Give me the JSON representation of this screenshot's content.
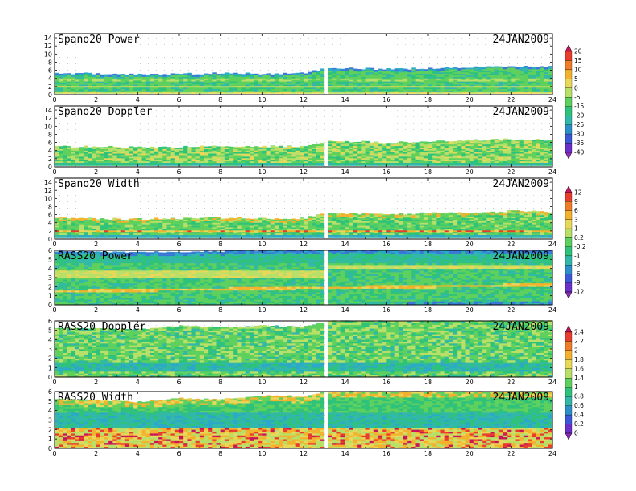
{
  "chart_data": [
    {
      "type": "heatmap",
      "title": "Spano20  Power",
      "date": "24JAN2009",
      "x_ticks": [
        0,
        2,
        4,
        6,
        8,
        10,
        12,
        14,
        16,
        18,
        20,
        22,
        24
      ],
      "xlim": [
        0,
        24
      ],
      "y_ticks": [
        0,
        2,
        4,
        6,
        8,
        10,
        12,
        14
      ],
      "ylim": [
        0,
        15
      ],
      "top_profile": [
        {
          "x": 0,
          "y": 5.3
        },
        {
          "x": 2,
          "y": 5.2
        },
        {
          "x": 4,
          "y": 5.0
        },
        {
          "x": 6,
          "y": 5.1
        },
        {
          "x": 8,
          "y": 5.3
        },
        {
          "x": 10,
          "y": 5.2
        },
        {
          "x": 12,
          "y": 5.3
        },
        {
          "x": 13.2,
          "y": 6.6
        },
        {
          "x": 16,
          "y": 6.3
        },
        {
          "x": 18,
          "y": 6.5
        },
        {
          "x": 20,
          "y": 6.7
        },
        {
          "x": 22,
          "y": 6.9
        },
        {
          "x": 24,
          "y": 6.8
        }
      ],
      "colorbar": "power"
    },
    {
      "type": "heatmap",
      "title": "Spano20  Doppler",
      "date": "24JAN2009",
      "x_ticks": [
        0,
        2,
        4,
        6,
        8,
        10,
        12,
        14,
        16,
        18,
        20,
        22,
        24
      ],
      "xlim": [
        0,
        24
      ],
      "y_ticks": [
        0,
        2,
        4,
        6,
        8,
        10,
        12,
        14
      ],
      "ylim": [
        0,
        15
      ],
      "top_profile": [
        {
          "x": 0,
          "y": 5.0
        },
        {
          "x": 2,
          "y": 5.0
        },
        {
          "x": 4,
          "y": 4.8
        },
        {
          "x": 6,
          "y": 4.9
        },
        {
          "x": 8,
          "y": 5.0
        },
        {
          "x": 10,
          "y": 5.0
        },
        {
          "x": 12,
          "y": 5.0
        },
        {
          "x": 13.2,
          "y": 6.4
        },
        {
          "x": 16,
          "y": 6.0
        },
        {
          "x": 18,
          "y": 6.2
        },
        {
          "x": 20,
          "y": 6.5
        },
        {
          "x": 22,
          "y": 6.8
        },
        {
          "x": 24,
          "y": 6.6
        }
      ]
    },
    {
      "type": "heatmap",
      "title": "Spano20  Width",
      "date": "24JAN2009",
      "x_ticks": [
        0,
        2,
        4,
        6,
        8,
        10,
        12,
        14,
        16,
        18,
        20,
        22,
        24
      ],
      "xlim": [
        0,
        24
      ],
      "y_ticks": [
        0,
        2,
        4,
        6,
        8,
        10,
        12,
        14
      ],
      "ylim": [
        0,
        15
      ],
      "top_profile": [
        {
          "x": 0,
          "y": 5.2
        },
        {
          "x": 2,
          "y": 5.0
        },
        {
          "x": 4,
          "y": 4.9
        },
        {
          "x": 6,
          "y": 5.1
        },
        {
          "x": 8,
          "y": 5.2
        },
        {
          "x": 10,
          "y": 5.1
        },
        {
          "x": 12,
          "y": 5.1
        },
        {
          "x": 13.2,
          "y": 6.5
        },
        {
          "x": 16,
          "y": 6.1
        },
        {
          "x": 18,
          "y": 6.4
        },
        {
          "x": 20,
          "y": 6.6
        },
        {
          "x": 22,
          "y": 6.9
        },
        {
          "x": 24,
          "y": 6.7
        }
      ],
      "colorbar": "width"
    },
    {
      "type": "heatmap",
      "title": "RASS20  Power",
      "date": "24JAN2009",
      "x_ticks": [
        0,
        2,
        4,
        6,
        8,
        10,
        12,
        14,
        16,
        18,
        20,
        22,
        24
      ],
      "xlim": [
        0,
        24
      ],
      "y_ticks": [
        0,
        1,
        2,
        3,
        4,
        5,
        6
      ],
      "ylim": [
        0,
        6
      ],
      "top_profile": [
        {
          "x": 0,
          "y": 5.9
        },
        {
          "x": 4,
          "y": 5.8
        },
        {
          "x": 8,
          "y": 5.9
        },
        {
          "x": 12,
          "y": 6.0
        },
        {
          "x": 16,
          "y": 6.0
        },
        {
          "x": 20,
          "y": 6.0
        },
        {
          "x": 24,
          "y": 6.0
        }
      ]
    },
    {
      "type": "heatmap",
      "title": "RASS20  Doppler",
      "date": "24JAN2009",
      "x_ticks": [
        0,
        2,
        4,
        6,
        8,
        10,
        12,
        14,
        16,
        18,
        20,
        22,
        24
      ],
      "xlim": [
        0,
        24
      ],
      "y_ticks": [
        0,
        1,
        2,
        3,
        4,
        5,
        6
      ],
      "ylim": [
        0,
        6
      ],
      "top_profile": [
        {
          "x": 0,
          "y": 5.3
        },
        {
          "x": 2,
          "y": 5.2
        },
        {
          "x": 4,
          "y": 5.1
        },
        {
          "x": 6,
          "y": 5.5
        },
        {
          "x": 8,
          "y": 5.3
        },
        {
          "x": 10,
          "y": 5.5
        },
        {
          "x": 12,
          "y": 5.4
        },
        {
          "x": 13.2,
          "y": 6.0
        },
        {
          "x": 16,
          "y": 6.0
        },
        {
          "x": 20,
          "y": 6.0
        },
        {
          "x": 24,
          "y": 6.0
        }
      ],
      "colorbar": "doppler"
    },
    {
      "type": "heatmap",
      "title": "RASS20  Width",
      "date": "24JAN2009",
      "x_ticks": [
        0,
        2,
        4,
        6,
        8,
        10,
        12,
        14,
        16,
        18,
        20,
        22,
        24
      ],
      "xlim": [
        0,
        24
      ],
      "y_ticks": [
        0,
        1,
        2,
        3,
        4,
        5,
        6
      ],
      "ylim": [
        0,
        6
      ],
      "top_profile": [
        {
          "x": 0,
          "y": 5.2
        },
        {
          "x": 2,
          "y": 5.1
        },
        {
          "x": 4,
          "y": 4.9
        },
        {
          "x": 6,
          "y": 5.3
        },
        {
          "x": 8,
          "y": 5.2
        },
        {
          "x": 10,
          "y": 5.6
        },
        {
          "x": 12,
          "y": 5.5
        },
        {
          "x": 13.2,
          "y": 6.0
        },
        {
          "x": 16,
          "y": 6.0
        },
        {
          "x": 20,
          "y": 6.0
        },
        {
          "x": 24,
          "y": 6.0
        }
      ]
    }
  ],
  "colorbars": {
    "power": {
      "labels": [
        "20",
        "15",
        "10",
        "5",
        "0",
        "-5",
        "-15",
        "-20",
        "-25",
        "-30",
        "-35",
        "-40"
      ],
      "colors": [
        "#c8145a",
        "#e83c2c",
        "#f07c28",
        "#f2b22e",
        "#e8d85a",
        "#b8e068",
        "#5ed05e",
        "#2ec27a",
        "#32b8a8",
        "#2c90c8",
        "#3a58d8",
        "#6a30c8",
        "#8c28c0"
      ]
    },
    "width": {
      "labels": [
        "12",
        "9",
        "6",
        "3",
        "1",
        "0.2",
        "-0.2",
        "-1",
        "-3",
        "-6",
        "-9",
        "-12"
      ],
      "colors": [
        "#c8145a",
        "#e83c2c",
        "#f07c28",
        "#f2b22e",
        "#e8d85a",
        "#b8e068",
        "#5ed05e",
        "#2ec27a",
        "#32b8a8",
        "#2c90c8",
        "#3a58d8",
        "#6a30c8",
        "#8c28c0"
      ]
    },
    "doppler": {
      "labels": [
        "2.4",
        "2.2",
        "2",
        "1.8",
        "1.6",
        "1.4",
        "1",
        "0.8",
        "0.6",
        "0.4",
        "0.2",
        "0"
      ],
      "colors": [
        "#c8145a",
        "#e83c2c",
        "#f07c28",
        "#f2b22e",
        "#e8d85a",
        "#b8e068",
        "#5ed05e",
        "#2ec27a",
        "#32b8a8",
        "#2c90c8",
        "#3a58d8",
        "#6a30c8",
        "#8c28c0"
      ]
    }
  }
}
